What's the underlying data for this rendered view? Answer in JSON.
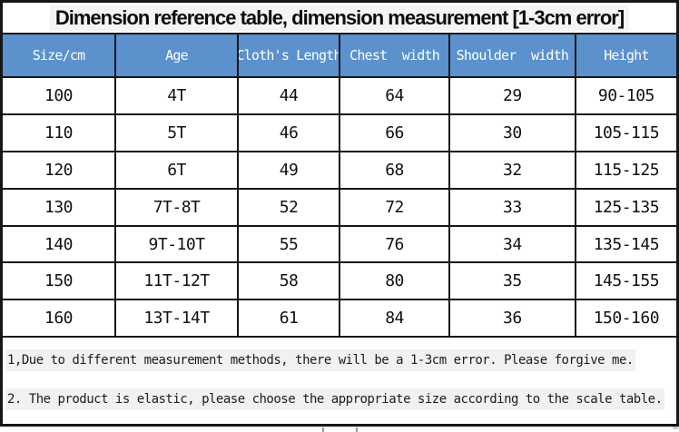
{
  "title": "Dimension reference table, dimension measurement [1-3cm error]",
  "table": {
    "headers": [
      "Size/cm",
      "Age",
      "Cloth's Length",
      "Chest  width",
      "Shoulder  width",
      "Height"
    ],
    "rows": [
      [
        "100",
        "4T",
        "44",
        "64",
        "29",
        "90-105"
      ],
      [
        "110",
        "5T",
        "46",
        "66",
        "30",
        "105-115"
      ],
      [
        "120",
        "6T",
        "49",
        "68",
        "32",
        "115-125"
      ],
      [
        "130",
        "7T-8T",
        "52",
        "72",
        "33",
        "125-135"
      ],
      [
        "140",
        "9T-10T",
        "55",
        "76",
        "34",
        "135-145"
      ],
      [
        "150",
        "11T-12T",
        "58",
        "80",
        "35",
        "145-155"
      ],
      [
        "160",
        "13T-14T",
        "61",
        "84",
        "36",
        "150-160"
      ]
    ]
  },
  "notes": [
    "1,Due to different measurement methods, there will be a 1-3cm error. Please forgive me.",
    "2. The product is elastic, please choose the appropriate size according to the scale table."
  ],
  "colors": {
    "header_bg": "#5b91cd",
    "header_text": "#ffffff",
    "border": "#161616",
    "cell_text": "#111111",
    "title_bg": "#f4f4f4",
    "note_bg": "#f1f1f1"
  }
}
